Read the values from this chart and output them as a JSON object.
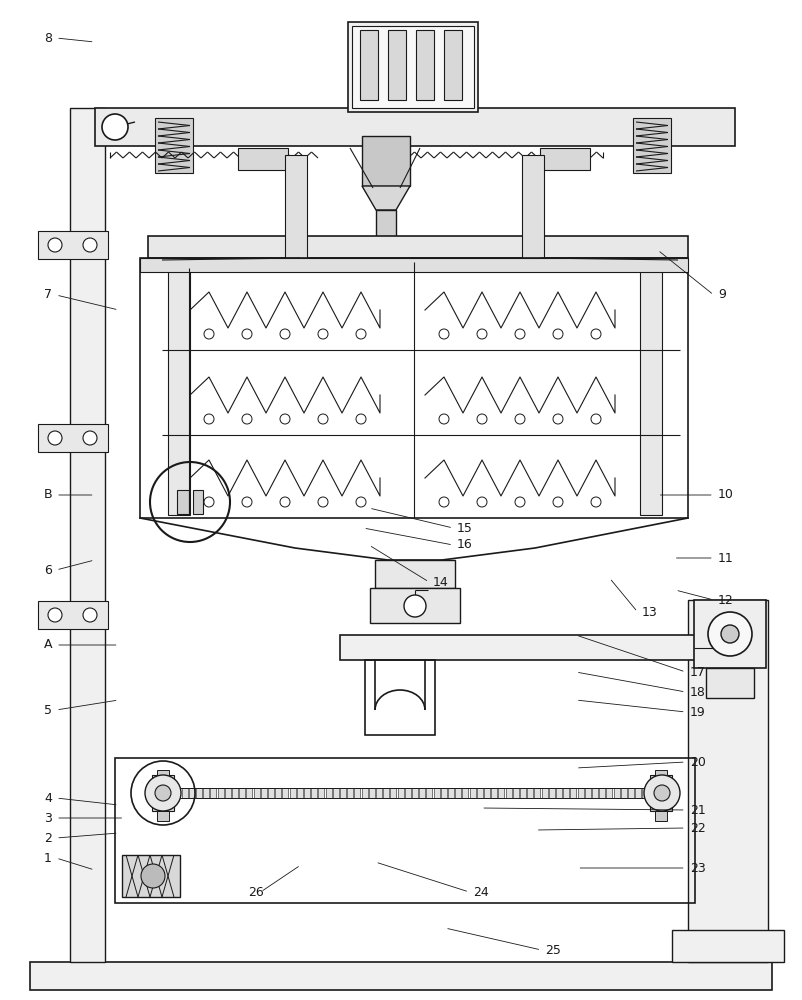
{
  "bg_color": "#ffffff",
  "line_color": "#1a1a1a",
  "fig_width": 8.02,
  "fig_height": 10.0,
  "label_positions": {
    "1": [
      0.055,
      0.858,
      0.118,
      0.87
    ],
    "2": [
      0.055,
      0.838,
      0.148,
      0.833
    ],
    "3": [
      0.055,
      0.818,
      0.155,
      0.818
    ],
    "4": [
      0.055,
      0.798,
      0.148,
      0.805
    ],
    "5": [
      0.055,
      0.71,
      0.148,
      0.7
    ],
    "6": [
      0.055,
      0.57,
      0.118,
      0.56
    ],
    "7": [
      0.055,
      0.295,
      0.148,
      0.31
    ],
    "8": [
      0.055,
      0.038,
      0.118,
      0.042
    ],
    "A": [
      0.055,
      0.645,
      0.148,
      0.645
    ],
    "B": [
      0.055,
      0.495,
      0.118,
      0.495
    ],
    "9": [
      0.895,
      0.295,
      0.82,
      0.25
    ],
    "10": [
      0.895,
      0.495,
      0.82,
      0.495
    ],
    "11": [
      0.895,
      0.558,
      0.84,
      0.558
    ],
    "12": [
      0.895,
      0.6,
      0.842,
      0.59
    ],
    "13": [
      0.8,
      0.612,
      0.76,
      0.578
    ],
    "14": [
      0.54,
      0.582,
      0.46,
      0.545
    ],
    "15": [
      0.57,
      0.528,
      0.46,
      0.508
    ],
    "16": [
      0.57,
      0.545,
      0.453,
      0.528
    ],
    "17": [
      0.86,
      0.672,
      0.718,
      0.635
    ],
    "18": [
      0.86,
      0.692,
      0.718,
      0.672
    ],
    "19": [
      0.86,
      0.712,
      0.718,
      0.7
    ],
    "20": [
      0.86,
      0.762,
      0.718,
      0.768
    ],
    "21": [
      0.86,
      0.81,
      0.6,
      0.808
    ],
    "22": [
      0.86,
      0.828,
      0.668,
      0.83
    ],
    "23": [
      0.86,
      0.868,
      0.72,
      0.868
    ],
    "24": [
      0.59,
      0.892,
      0.468,
      0.862
    ],
    "25": [
      0.68,
      0.95,
      0.555,
      0.928
    ],
    "26": [
      0.31,
      0.892,
      0.375,
      0.865
    ]
  }
}
